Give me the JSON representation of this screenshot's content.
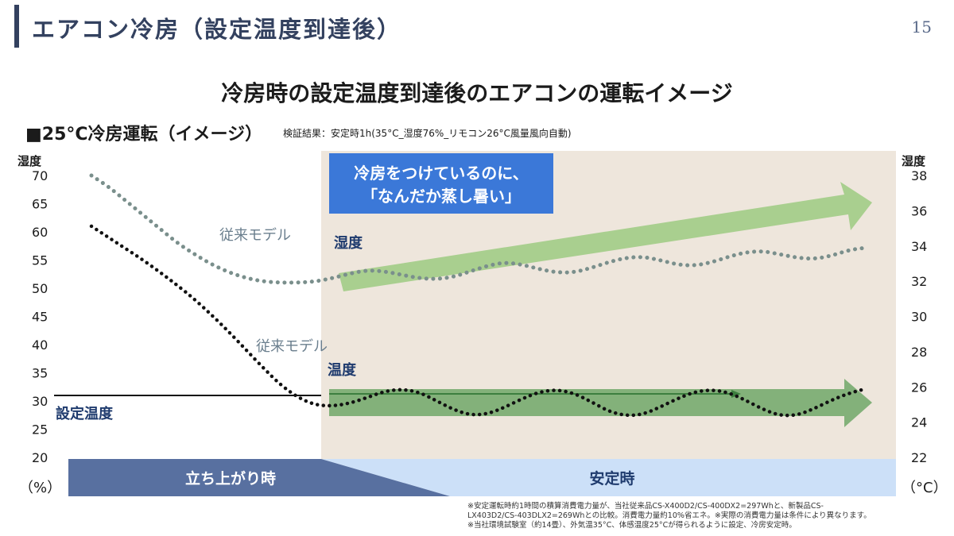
{
  "header": {
    "title": "エアコン冷房（設定温度到達後）",
    "page_number": "15"
  },
  "subtitle": "冷房時の設定温度到達後のエアコンの運転イメージ",
  "condition": {
    "label": "■25°C冷房運転（イメージ）",
    "note": "検証結果：安定時1h(35°C_湿度76%_リモコン26°C風量風向自動)"
  },
  "chart_data": {
    "type": "line",
    "y_left": {
      "label": "湿度",
      "unit": "（%）",
      "range": [
        20,
        70
      ],
      "ticks": [
        "70",
        "65",
        "60",
        "55",
        "50",
        "45",
        "40",
        "35",
        "30",
        "25",
        "20"
      ]
    },
    "y_right": {
      "label": "湿度",
      "unit": "（°C）",
      "range": [
        22,
        38
      ],
      "ticks": [
        "38",
        "36",
        "34",
        "32",
        "30",
        "28",
        "26",
        "24",
        "22"
      ]
    },
    "series": [
      {
        "name": "従来モデル 湿度",
        "axis": "left",
        "style": "dotted",
        "color": "#7a8f8c",
        "values": [
          70,
          68,
          65.5,
          63,
          60.5,
          58,
          56,
          54.2,
          52.8,
          51.8,
          51.2,
          51,
          51,
          51.2,
          51.8,
          52.6,
          53.2,
          53,
          52.4,
          51.8,
          51.6,
          52,
          53,
          54,
          54.6,
          54.2,
          53.4,
          52.8,
          52.8,
          53.6,
          54.6,
          55.4,
          55.6,
          55,
          54.2,
          54,
          54.6,
          55.6,
          56.4,
          56.6,
          56,
          55.4,
          55.2,
          55.8,
          56.8,
          57.2
        ]
      },
      {
        "name": "従来モデル 温度",
        "axis": "left",
        "style": "dotted",
        "color": "#111111",
        "values": [
          61,
          59,
          57,
          55,
          52.8,
          50.5,
          48,
          45.2,
          42.2,
          39,
          35.8,
          32.8,
          30.6,
          29.3,
          29.1,
          29.6,
          30.6,
          31.7,
          32.1,
          31.6,
          30.1,
          28.5,
          27.5,
          27.7,
          28.9,
          30.4,
          31.6,
          32,
          31.4,
          29.9,
          28.2,
          27.4,
          27.6,
          28.9,
          30.4,
          31.6,
          32,
          31.5,
          30.1,
          28.5,
          27.4,
          27.5,
          28.7,
          30.2,
          31.4,
          32.2
        ]
      },
      {
        "name": "設定温度",
        "axis": "left",
        "style": "solid",
        "color": "#111111",
        "values": [
          31,
          31
        ]
      }
    ],
    "annotations": {
      "callout": [
        "冷房をつけているのに、",
        "「なんだか蒸し暑い」"
      ],
      "model_upper": "従来モデル",
      "label_upper": "湿度",
      "model_lower": "従来モデル",
      "label_lower": "温度",
      "setpoint": "設定温度"
    },
    "phases": [
      "立ち上がり時",
      "安定時"
    ],
    "grid": false,
    "legend": "none"
  },
  "notes": [
    "※安定運転時約1時間の積算消費電力量が、当社従来品CS-X400D2/CS-400DX2=297Whと、新製品CS-",
    "LX403D2/CS-403DLX2=269Whとの比較。消費電力量約10%省エネ。※実際の消費電力量は条件により異なります。",
    "※当社環境試験室（約14畳）、外気温35°C、体感温度25°Cが得られるように設定、冷房安定時。"
  ],
  "colors": {
    "header": "#33415f",
    "stable_bg": "#eee6dc",
    "callout": "#3b78d8",
    "arrow": "#a9cf8f",
    "arrow_dark": "#5f9f5a",
    "phase_dark": "#5870a0",
    "phase_light": "#cce0f8"
  }
}
